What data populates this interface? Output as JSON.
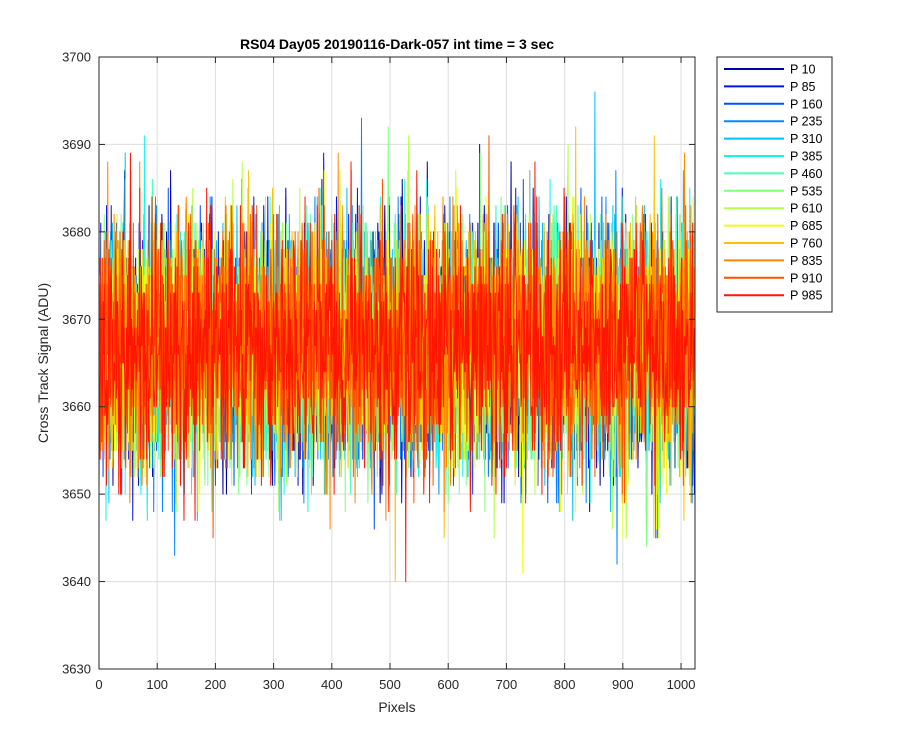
{
  "chart_data": {
    "type": "line",
    "title": "RS04 Day05 20190116-Dark-057 int time = 3 sec",
    "xlabel": "Pixels",
    "ylabel": "Cross Track Signal (ADU)",
    "xlim": [
      0,
      1024
    ],
    "ylim": [
      3630,
      3700
    ],
    "xticks": [
      0,
      100,
      200,
      300,
      400,
      500,
      600,
      700,
      800,
      900,
      1000
    ],
    "yticks": [
      3630,
      3640,
      3650,
      3660,
      3670,
      3680,
      3690,
      3700
    ],
    "grid": true,
    "legend_position": "outside-top-right",
    "noise_model": {
      "points_per_series": 1024,
      "mean_adu": 3667,
      "std_adu": 7,
      "min_adu": 3637,
      "max_adu": 3697
    },
    "series": [
      {
        "name": "P 10",
        "color": "#0000a8"
      },
      {
        "name": "P 85",
        "color": "#0016e0"
      },
      {
        "name": "P 160",
        "color": "#0050ff"
      },
      {
        "name": "P 235",
        "color": "#0088ff"
      },
      {
        "name": "P 310",
        "color": "#00c0ff"
      },
      {
        "name": "P 385",
        "color": "#10f8ee"
      },
      {
        "name": "P 460",
        "color": "#48ffb6"
      },
      {
        "name": "P 535",
        "color": "#80ff80"
      },
      {
        "name": "P 610",
        "color": "#b6ff48"
      },
      {
        "name": "P 685",
        "color": "#eeff10"
      },
      {
        "name": "P 760",
        "color": "#ffc000"
      },
      {
        "name": "P 835",
        "color": "#ff8800"
      },
      {
        "name": "P 910",
        "color": "#ff5000"
      },
      {
        "name": "P 985",
        "color": "#ff1600"
      }
    ]
  }
}
